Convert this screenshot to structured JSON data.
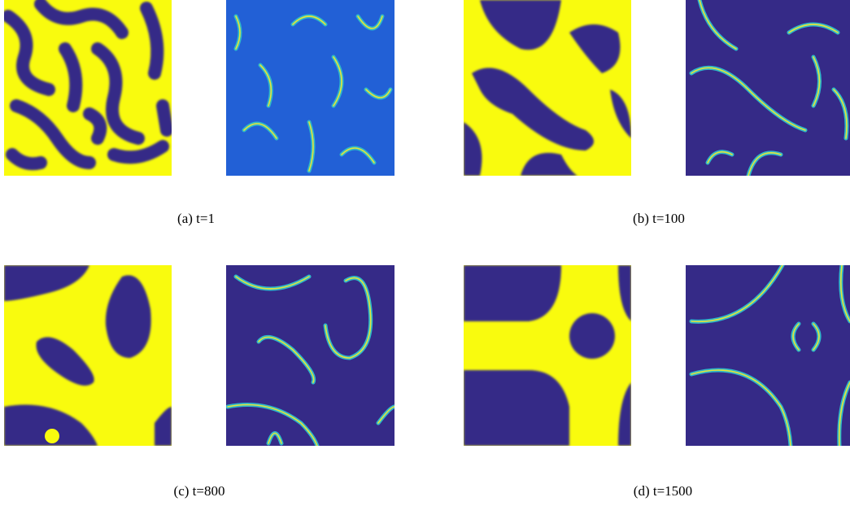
{
  "figures": [
    {
      "label": "(a)",
      "caption": "t=1"
    },
    {
      "label": "(b)",
      "caption": "t=100"
    },
    {
      "label": "(c)",
      "caption": "t=800"
    },
    {
      "label": "(d)",
      "caption": "t=1500"
    }
  ]
}
